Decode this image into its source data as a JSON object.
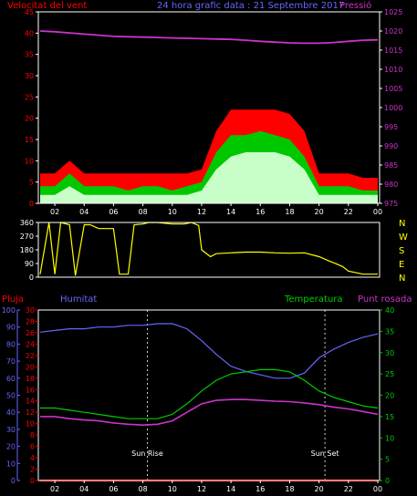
{
  "header": {
    "left_label": "Velocitat del vent",
    "title": "24 hora grafic data : 21 Septembre 2017",
    "right_label": "Pressió"
  },
  "colors": {
    "wind_gust": "#ff0000",
    "wind_speed": "#00c800",
    "wind_avg": "#c8ffc8",
    "pressure": "#cc33cc",
    "direction": "#ffff00",
    "humidity": "#6666ff",
    "temperature": "#00cc00",
    "dewpoint": "#cc33cc",
    "rain": "#ff0000",
    "left_axis": "#ff0000",
    "pressure_axis": "#cc33cc",
    "humidity_axis": "#6666ff",
    "temp_axis": "#00cc00"
  },
  "chart_data": [
    {
      "type": "area",
      "name": "wind-pressure",
      "x_ticks": [
        "02",
        "04",
        "06",
        "08",
        "10",
        "12",
        "14",
        "16",
        "18",
        "20",
        "22",
        "00"
      ],
      "left_axis": {
        "ticks": [
          "0",
          "5",
          "10",
          "15",
          "20",
          "25",
          "30",
          "35",
          "40",
          "45"
        ],
        "range": [
          0,
          45
        ]
      },
      "right_axis": {
        "ticks": [
          "975",
          "980",
          "985",
          "990",
          "995",
          "1000",
          "1005",
          "1010",
          "1015",
          "1020",
          "1025"
        ],
        "range": [
          975,
          1025
        ]
      },
      "x_range": [
        1,
        24
      ],
      "pressure": {
        "x": [
          1,
          2,
          3,
          4,
          5,
          6,
          7,
          8,
          9,
          10,
          11,
          12,
          13,
          14,
          15,
          16,
          17,
          18,
          19,
          20,
          21,
          22,
          23,
          24
        ],
        "y": [
          1020,
          1019.8,
          1019.5,
          1019.2,
          1018.9,
          1018.6,
          1018.5,
          1018.4,
          1018.3,
          1018.2,
          1018.1,
          1018,
          1017.9,
          1017.8,
          1017.6,
          1017.3,
          1017.1,
          1016.9,
          1016.8,
          1016.8,
          1017,
          1017.3,
          1017.6,
          1017.7
        ]
      },
      "wind_gust": {
        "x": [
          1,
          2,
          3,
          4,
          5,
          6,
          7,
          8,
          9,
          10,
          11,
          12,
          13,
          14,
          15,
          16,
          17,
          18,
          19,
          20,
          21,
          22,
          23,
          24
        ],
        "y": [
          7,
          7,
          10,
          7,
          7,
          7,
          7,
          7,
          7,
          7,
          7,
          8,
          17,
          22,
          22,
          22,
          22,
          21,
          17,
          7,
          7,
          7,
          6,
          6
        ]
      },
      "wind_speed": {
        "x": [
          1,
          2,
          3,
          4,
          5,
          6,
          7,
          8,
          9,
          10,
          11,
          12,
          13,
          14,
          15,
          16,
          17,
          18,
          19,
          20,
          21,
          22,
          23,
          24
        ],
        "y": [
          4,
          4,
          7,
          4,
          4,
          4,
          3,
          4,
          4,
          3,
          4,
          5,
          12,
          16,
          16,
          17,
          16,
          15,
          11,
          4,
          4,
          4,
          3,
          3
        ]
      },
      "wind_avg": {
        "x": [
          1,
          2,
          3,
          4,
          5,
          6,
          7,
          8,
          9,
          10,
          11,
          12,
          13,
          14,
          15,
          16,
          17,
          18,
          19,
          20,
          21,
          22,
          23,
          24
        ],
        "y": [
          2,
          2,
          4,
          2,
          2,
          2,
          2,
          2,
          2,
          2,
          2,
          3,
          8,
          11,
          12,
          12,
          12,
          11,
          8,
          2,
          2,
          2,
          2,
          2
        ]
      }
    },
    {
      "type": "line",
      "name": "wind-direction",
      "left_axis": {
        "ticks": [
          "0",
          "90",
          "180",
          "270",
          "360"
        ],
        "range": [
          0,
          360
        ]
      },
      "right_labels": [
        "N",
        "W",
        "S",
        "E",
        "N"
      ],
      "x_range": [
        1,
        24
      ],
      "direction": {
        "x": [
          1,
          1.6,
          2,
          2.4,
          3,
          3.4,
          4,
          4.4,
          5,
          6,
          6.4,
          7,
          7.4,
          8,
          8.4,
          9,
          10,
          10.8,
          11.3,
          11.8,
          12,
          12.6,
          13,
          14,
          15,
          16,
          17,
          18,
          19,
          20,
          20.6,
          21,
          21.6,
          22,
          23,
          24
        ],
        "y": [
          20,
          360,
          20,
          360,
          345,
          10,
          345,
          345,
          320,
          320,
          20,
          20,
          345,
          350,
          360,
          360,
          350,
          350,
          360,
          340,
          180,
          135,
          155,
          160,
          165,
          165,
          160,
          158,
          160,
          135,
          110,
          95,
          70,
          40,
          20,
          20
        ]
      }
    },
    {
      "type": "line",
      "name": "humidity-temperature",
      "labels": {
        "rain": "Pluja",
        "humidity": "Humitat",
        "temperature": "Temperatura",
        "dewpoint": "Punt rosada"
      },
      "x_ticks": [
        "02",
        "04",
        "06",
        "08",
        "10",
        "12",
        "14",
        "16",
        "18",
        "20",
        "22",
        "00"
      ],
      "humidity_axis": {
        "ticks": [
          "0",
          "10",
          "20",
          "30",
          "40",
          "50",
          "60",
          "70",
          "80",
          "90",
          "100"
        ],
        "range": [
          0,
          100
        ]
      },
      "rain_axis": {
        "ticks": [
          "0",
          "2",
          "4",
          "6",
          "8",
          "10",
          "12",
          "14",
          "16",
          "18",
          "20",
          "22",
          "24",
          "26",
          "28",
          "30"
        ],
        "range": [
          0,
          30
        ]
      },
      "temp_axis": {
        "ticks": [
          "0",
          "5",
          "10",
          "15",
          "20",
          "25",
          "30",
          "35",
          "40"
        ],
        "range": [
          0,
          40
        ]
      },
      "x_range": [
        1,
        24
      ],
      "humidity": {
        "x": [
          1,
          2,
          3,
          4,
          5,
          6,
          7,
          8,
          9,
          10,
          11,
          12,
          13,
          14,
          15,
          16,
          17,
          18,
          19,
          20,
          21,
          22,
          23,
          24
        ],
        "y": [
          87,
          88,
          89,
          89,
          90,
          90,
          91,
          91,
          92,
          92,
          89,
          82,
          74,
          67,
          64,
          62,
          60,
          60,
          63,
          72,
          77,
          81,
          84,
          86
        ]
      },
      "temperature": {
        "x": [
          1,
          2,
          3,
          4,
          5,
          6,
          7,
          8,
          9,
          10,
          11,
          12,
          13,
          14,
          15,
          16,
          17,
          18,
          19,
          20,
          21,
          22,
          23,
          24
        ],
        "y": [
          17,
          17,
          16.5,
          16,
          15.5,
          15,
          14.5,
          14.5,
          14.5,
          15.5,
          18,
          21,
          23.5,
          25,
          25.5,
          26,
          26,
          25.5,
          23.5,
          21,
          19.5,
          18.5,
          17.5,
          17
        ]
      },
      "dewpoint": {
        "x": [
          1,
          2,
          3,
          4,
          5,
          6,
          7,
          8,
          9,
          10,
          11,
          12,
          13,
          14,
          15,
          16,
          17,
          18,
          19,
          20,
          21,
          22,
          23,
          24
        ],
        "y": [
          15,
          15,
          14.5,
          14.2,
          14,
          13.5,
          13.2,
          13,
          13.2,
          14,
          16,
          18,
          18.8,
          19,
          19,
          18.8,
          18.6,
          18.5,
          18.2,
          17.8,
          17.2,
          16.8,
          16.2,
          15.5
        ]
      },
      "rain": {
        "x": [
          1,
          24
        ],
        "y": [
          0,
          0
        ]
      },
      "annotations": [
        {
          "label": "Sun Rise",
          "x": 8.3
        },
        {
          "label": "Sun Set",
          "x": 20.4
        }
      ]
    }
  ]
}
